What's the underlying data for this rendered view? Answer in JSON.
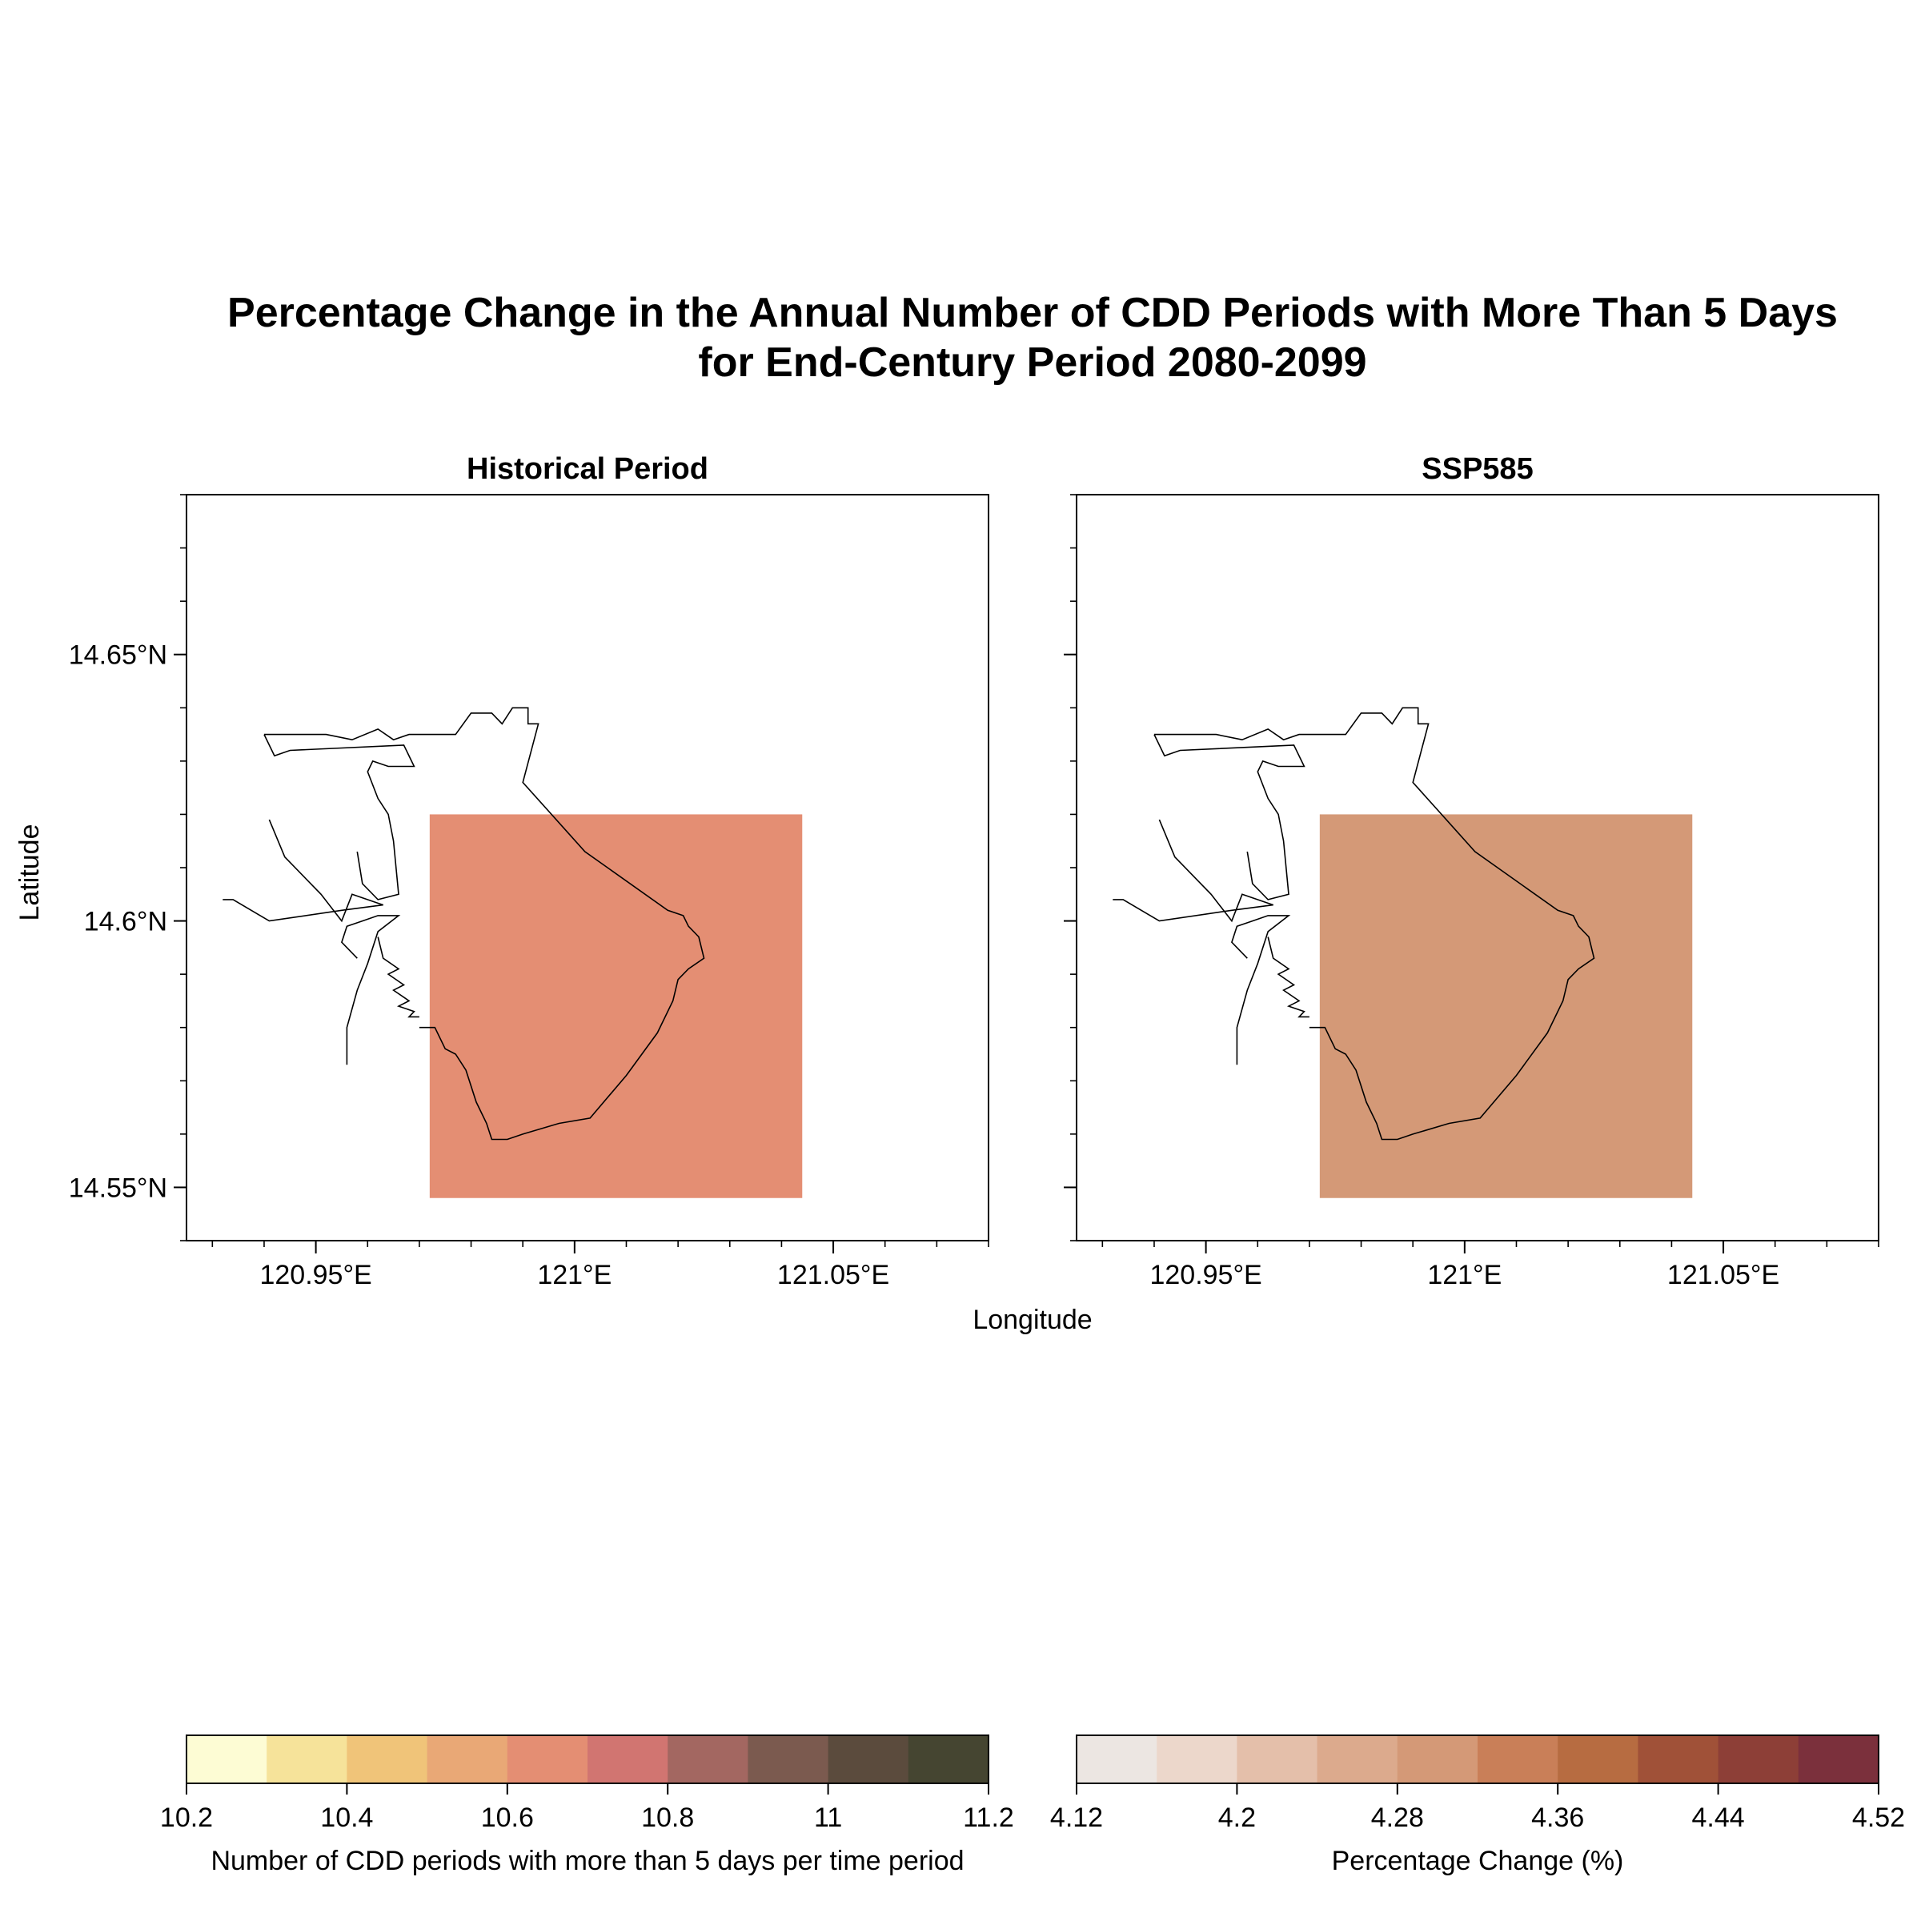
{
  "title": {
    "line1": "Percentage Change in the Annual Number of CDD Periods with More Than 5 Days",
    "line2": "for End-Century Period 2080-2099"
  },
  "axes_labels": {
    "x": "Longitude",
    "y": "Latitude"
  },
  "chart_data": [
    {
      "type": "heatmap",
      "title": "Historical Period",
      "xlim": [
        120.925,
        121.08
      ],
      "ylim": [
        14.54,
        14.68
      ],
      "xticks": [
        "120.95°E",
        "121°E",
        "121.05°E"
      ],
      "xtick_values": [
        120.95,
        121.0,
        121.05
      ],
      "yticks": [
        "14.65°N",
        "14.6°N",
        "14.55°N"
      ],
      "ytick_values": [
        14.65,
        14.6,
        14.55
      ],
      "cell": {
        "lon_min": 120.972,
        "lon_max": 121.044,
        "lat_min": 14.548,
        "lat_max": 14.62,
        "value": 10.65,
        "color": "#e48e73"
      },
      "colorbar": {
        "label": "Number of CDD periods with more than 5 days per time period",
        "ticks": [
          "10.2",
          "10.4",
          "10.6",
          "10.8",
          "11",
          "11.2"
        ],
        "tick_values": [
          10.2,
          10.4,
          10.6,
          10.8,
          11.0,
          11.2
        ],
        "range": [
          10.2,
          11.2
        ],
        "colors": [
          "#fdfcd4",
          "#f6e39a",
          "#f0c479",
          "#e9a876",
          "#e48e73",
          "#d17571",
          "#a36761",
          "#7b5a4f",
          "#5b4b3d",
          "#454531"
        ]
      }
    },
    {
      "type": "heatmap",
      "title": "SSP585",
      "xlim": [
        120.925,
        121.08
      ],
      "ylim": [
        14.54,
        14.68
      ],
      "xticks": [
        "120.95°E",
        "121°E",
        "121.05°E"
      ],
      "xtick_values": [
        120.95,
        121.0,
        121.05
      ],
      "yticks": [],
      "ytick_values": [
        14.65,
        14.6,
        14.55
      ],
      "cell": {
        "lon_min": 120.972,
        "lon_max": 121.044,
        "lat_min": 14.548,
        "lat_max": 14.62,
        "value": 4.31,
        "color": "#d49977"
      },
      "colorbar": {
        "label": "Percentage Change (%)",
        "ticks": [
          "4.12",
          "4.2",
          "4.28",
          "4.36",
          "4.44",
          "4.52"
        ],
        "tick_values": [
          4.12,
          4.2,
          4.28,
          4.36,
          4.44,
          4.52
        ],
        "range": [
          4.12,
          4.52
        ],
        "colors": [
          "#ece6e2",
          "#ecd7cb",
          "#e4bfaa",
          "#dcaa8d",
          "#d49977",
          "#c97f58",
          "#b76c41",
          "#a05138",
          "#8d3f37",
          "#7b303c"
        ]
      }
    }
  ],
  "coastline_lonlat": [
    [
      120.94,
      14.635
    ],
    [
      120.952,
      14.635
    ],
    [
      120.957,
      14.634
    ],
    [
      120.962,
      14.636
    ],
    [
      120.965,
      14.634
    ],
    [
      120.968,
      14.635
    ],
    [
      120.977,
      14.635
    ],
    [
      120.98,
      14.639
    ],
    [
      120.984,
      14.639
    ],
    [
      120.986,
      14.637
    ],
    [
      120.988,
      14.64
    ],
    [
      120.991,
      14.64
    ],
    [
      120.991,
      14.637
    ],
    [
      120.993,
      14.637
    ],
    [
      120.99,
      14.626
    ],
    [
      121.002,
      14.613
    ],
    [
      121.018,
      14.602
    ],
    [
      121.021,
      14.601
    ],
    [
      121.022,
      14.599
    ],
    [
      121.024,
      14.597
    ],
    [
      121.025,
      14.593
    ],
    [
      121.022,
      14.591
    ],
    [
      121.02,
      14.589
    ],
    [
      121.019,
      14.585
    ],
    [
      121.016,
      14.579
    ],
    [
      121.01,
      14.571
    ],
    [
      121.003,
      14.563
    ],
    [
      120.997,
      14.562
    ],
    [
      120.99,
      14.56
    ],
    [
      120.987,
      14.559
    ],
    [
      120.984,
      14.559
    ],
    [
      120.983,
      14.562
    ],
    [
      120.981,
      14.566
    ],
    [
      120.979,
      14.572
    ],
    [
      120.977,
      14.575
    ],
    [
      120.975,
      14.576
    ],
    [
      120.973,
      14.58
    ],
    [
      120.97,
      14.58
    ]
  ],
  "pier_lonlat": [
    [
      120.94,
      14.635
    ],
    [
      120.942,
      14.631
    ],
    [
      120.945,
      14.632
    ],
    [
      120.967,
      14.633
    ],
    [
      120.969,
      14.629
    ],
    [
      120.964,
      14.629
    ],
    [
      120.961,
      14.63
    ],
    [
      120.96,
      14.628
    ],
    [
      120.962,
      14.623
    ],
    [
      120.964,
      14.62
    ],
    [
      120.965,
      14.615
    ],
    [
      120.966,
      14.605
    ],
    [
      120.962,
      14.604
    ],
    [
      120.959,
      14.607
    ],
    [
      120.958,
      14.613
    ]
  ],
  "breakwater_lonlat": [
    [
      120.932,
      14.604
    ],
    [
      120.934,
      14.604
    ],
    [
      120.941,
      14.6
    ],
    [
      120.955,
      14.602
    ],
    [
      120.963,
      14.603
    ],
    [
      120.957,
      14.605
    ],
    [
      120.955,
      14.6
    ],
    [
      120.951,
      14.605
    ],
    [
      120.944,
      14.612
    ],
    [
      120.941,
      14.619
    ]
  ],
  "south_pier_lonlat": [
    [
      120.958,
      14.593
    ],
    [
      120.955,
      14.596
    ],
    [
      120.956,
      14.599
    ],
    [
      120.959,
      14.6
    ],
    [
      120.962,
      14.601
    ],
    [
      120.966,
      14.601
    ],
    [
      120.962,
      14.598
    ],
    [
      120.96,
      14.592
    ],
    [
      120.958,
      14.587
    ],
    [
      120.956,
      14.58
    ],
    [
      120.956,
      14.573
    ]
  ],
  "fingers_lonlat": [
    [
      120.962,
      14.597
    ],
    [
      120.963,
      14.593
    ],
    [
      120.966,
      14.591
    ],
    [
      120.964,
      14.59
    ],
    [
      120.967,
      14.588
    ],
    [
      120.965,
      14.587
    ],
    [
      120.968,
      14.585
    ],
    [
      120.966,
      14.584
    ],
    [
      120.969,
      14.583
    ],
    [
      120.968,
      14.582
    ],
    [
      120.97,
      14.582
    ]
  ]
}
